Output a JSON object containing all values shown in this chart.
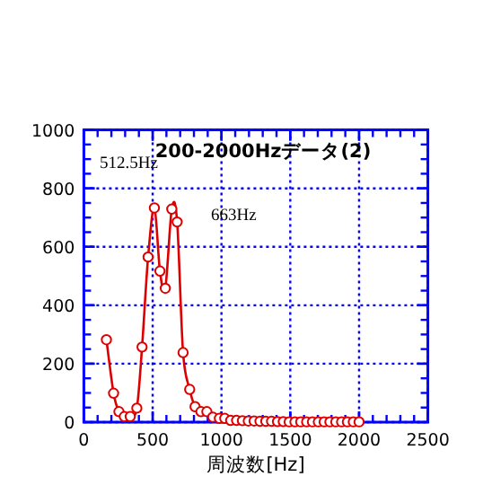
{
  "chart_data": {
    "type": "line",
    "title": "200-2000Hzデータ(2)",
    "xlabel": "周波数[Hz]",
    "x": [
      164,
      216,
      255,
      294,
      337,
      385,
      423,
      467,
      512.5,
      553,
      592,
      639,
      678,
      721,
      769,
      808,
      851,
      894,
      937,
      985,
      1024,
      1067,
      1110,
      1152,
      1195,
      1237,
      1280,
      1322,
      1364,
      1407,
      1449,
      1492,
      1534,
      1576,
      1619,
      1661,
      1704,
      1746,
      1788,
      1831,
      1873,
      1915,
      1958,
      2000
    ],
    "series": [
      {
        "color": "#dd0000",
        "values": [
          282,
          99,
          36,
          19,
          19,
          48,
          257,
          565,
          733,
          517,
          458,
          729,
          685,
          238,
          112,
          53,
          36,
          36,
          17,
          13,
          13,
          6,
          6,
          5,
          4,
          4,
          3,
          3,
          3,
          2,
          2,
          1,
          1,
          1,
          1,
          1,
          1,
          1,
          1,
          1,
          1,
          1,
          1,
          1
        ]
      }
    ],
    "xlim": [
      0,
      2500
    ],
    "xticks": [
      0,
      500,
      1000,
      1500,
      2000,
      2500
    ],
    "ylim": [
      0,
      1000
    ],
    "yticks": [
      0,
      200,
      400,
      600,
      800,
      1000
    ],
    "grid": true,
    "marker": "circle",
    "line_style": "solid",
    "annotations": [
      {
        "text": "512.5Hz",
        "x": 512.5,
        "y": 733
      },
      {
        "text": "663Hz",
        "x": 663,
        "y": 729
      }
    ]
  }
}
